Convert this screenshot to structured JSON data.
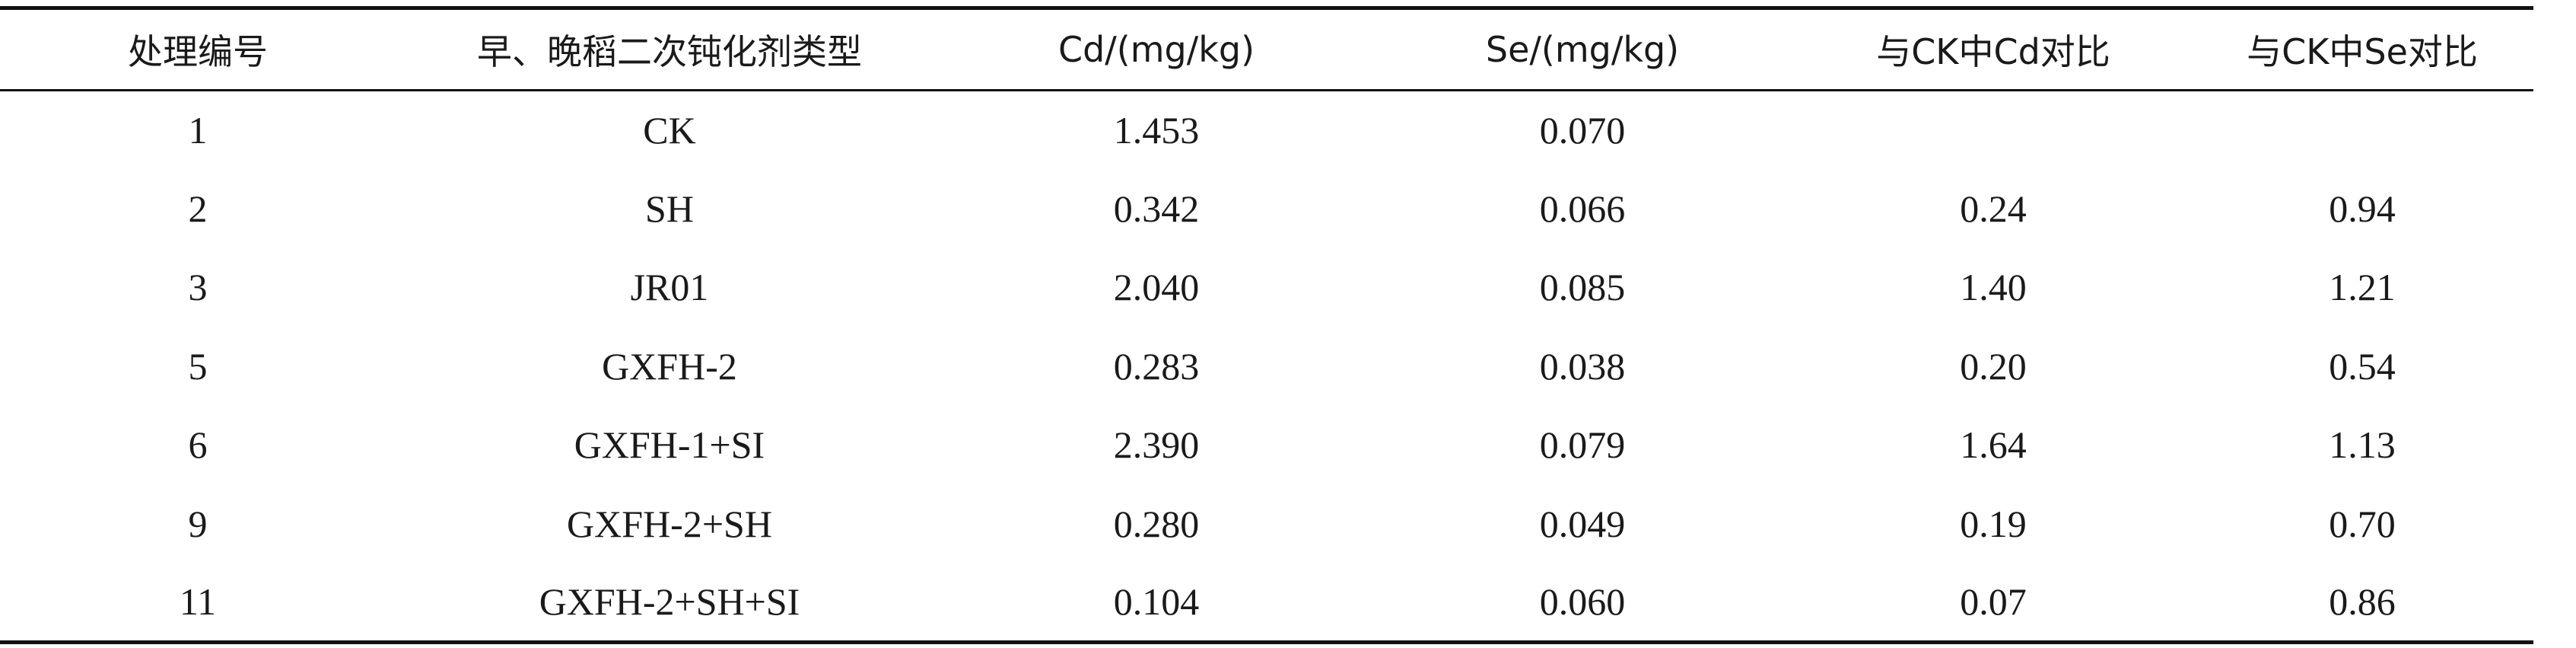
{
  "table": {
    "headers": [
      "处理编号",
      "早、晚稻二次钝化剂类型",
      "Cd/(mg/kg)",
      "Se/(mg/kg)",
      "与CK中Cd对比",
      "与CK中Se对比"
    ],
    "rows": [
      [
        "1",
        "CK",
        "1.453",
        "0.070",
        "",
        ""
      ],
      [
        "2",
        "SH",
        "0.342",
        "0.066",
        "0.24",
        "0.94"
      ],
      [
        "3",
        "JR01",
        "2.040",
        "0.085",
        "1.40",
        "1.21"
      ],
      [
        "5",
        "GXFH-2",
        "0.283",
        "0.038",
        "0.20",
        "0.54"
      ],
      [
        "6",
        "GXFH-1+SI",
        "2.390",
        "0.079",
        "1.64",
        "1.13"
      ],
      [
        "9",
        "GXFH-2+SH",
        "0.280",
        "0.049",
        "0.19",
        "0.70"
      ],
      [
        "11",
        "GXFH-2+SH+SI",
        "0.104",
        "0.060",
        "0.07",
        "0.86"
      ]
    ]
  },
  "chart_data": {
    "type": "table",
    "columns": [
      "处理编号",
      "早、晚稻二次钝化剂类型",
      "Cd/(mg/kg)",
      "Se/(mg/kg)",
      "与CK中Cd对比",
      "与CK中Se对比"
    ],
    "rows": [
      [
        "1",
        "CK",
        1.453,
        0.07,
        null,
        null
      ],
      [
        "2",
        "SH",
        0.342,
        0.066,
        0.24,
        0.94
      ],
      [
        "3",
        "JR01",
        2.04,
        0.085,
        1.4,
        1.21
      ],
      [
        "5",
        "GXFH-2",
        0.283,
        0.038,
        0.2,
        0.54
      ],
      [
        "6",
        "GXFH-1+SI",
        2.39,
        0.079,
        1.64,
        1.13
      ],
      [
        "9",
        "GXFH-2+SH",
        0.28,
        0.049,
        0.19,
        0.7
      ],
      [
        "11",
        "GXFH-2+SH+SI",
        0.104,
        0.06,
        0.07,
        0.86
      ]
    ]
  }
}
